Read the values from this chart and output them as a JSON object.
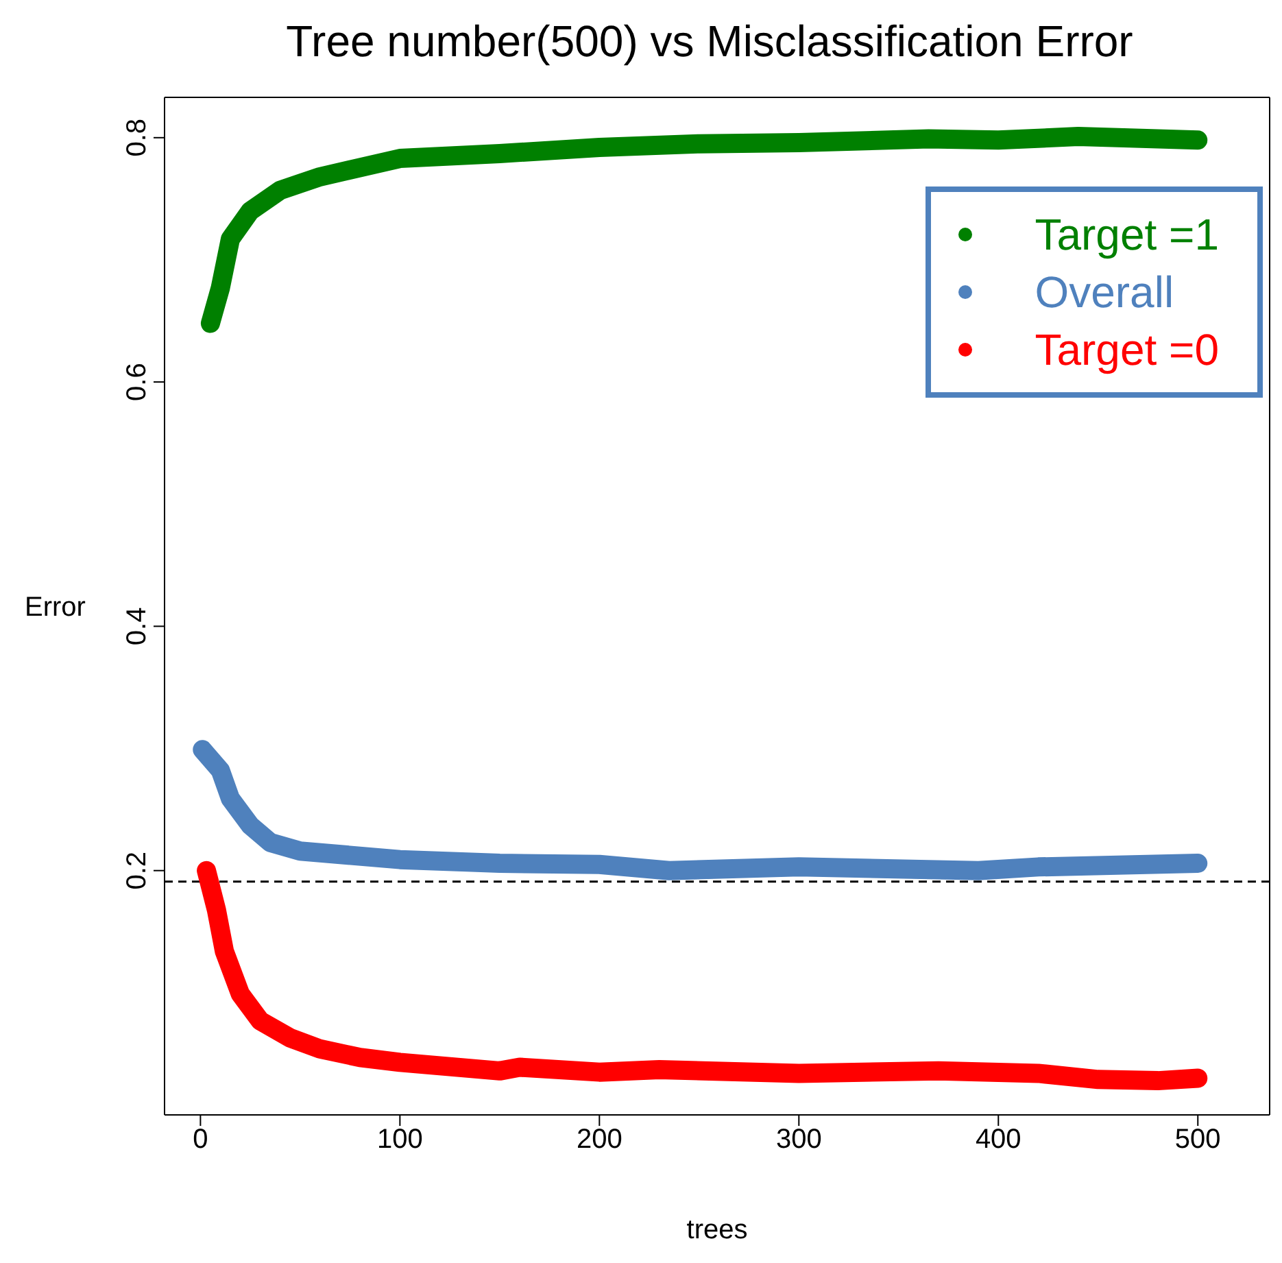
{
  "chart_data": {
    "type": "line",
    "title": "Tree number(500) vs Misclassification Error",
    "xlabel": "trees",
    "ylabel": "Error",
    "xlim": [
      -18,
      536
    ],
    "xticks": [
      0,
      100,
      200,
      300,
      400,
      500
    ],
    "ylim": [
      0,
      0.833
    ],
    "yticks": [
      0.2,
      0.4,
      0.6,
      0.8
    ],
    "legend": "top right",
    "marker": "none",
    "line_style": "solid",
    "ref_lines": [
      {
        "axis": "y",
        "value": 0.191,
        "color": "#000000",
        "line_style": "dashed"
      }
    ],
    "series": [
      {
        "name": "Target =1",
        "color": "#008000",
        "x": [
          5,
          10,
          15,
          25,
          40,
          60,
          100,
          150,
          200,
          250,
          300,
          365,
          400,
          440,
          500
        ],
        "values": [
          0.648,
          0.677,
          0.717,
          0.74,
          0.757,
          0.768,
          0.783,
          0.787,
          0.792,
          0.795,
          0.796,
          0.799,
          0.798,
          0.801,
          0.798
        ]
      },
      {
        "name": "Overall",
        "color": "#4f81bd",
        "x": [
          1,
          10,
          15,
          25,
          35,
          50,
          100,
          150,
          200,
          235,
          300,
          390,
          420,
          500
        ],
        "values": [
          0.299,
          0.282,
          0.259,
          0.237,
          0.223,
          0.216,
          0.209,
          0.206,
          0.205,
          0.2,
          0.203,
          0.2,
          0.203,
          0.206
        ]
      },
      {
        "name": "Target =0",
        "color": "#ff0000",
        "x": [
          3,
          8,
          12,
          20,
          30,
          45,
          60,
          80,
          100,
          150,
          160,
          200,
          230,
          300,
          370,
          420,
          450,
          480,
          500
        ],
        "values": [
          0.2,
          0.168,
          0.134,
          0.099,
          0.077,
          0.063,
          0.054,
          0.047,
          0.043,
          0.036,
          0.039,
          0.035,
          0.037,
          0.034,
          0.036,
          0.034,
          0.029,
          0.028,
          0.03
        ]
      }
    ]
  }
}
